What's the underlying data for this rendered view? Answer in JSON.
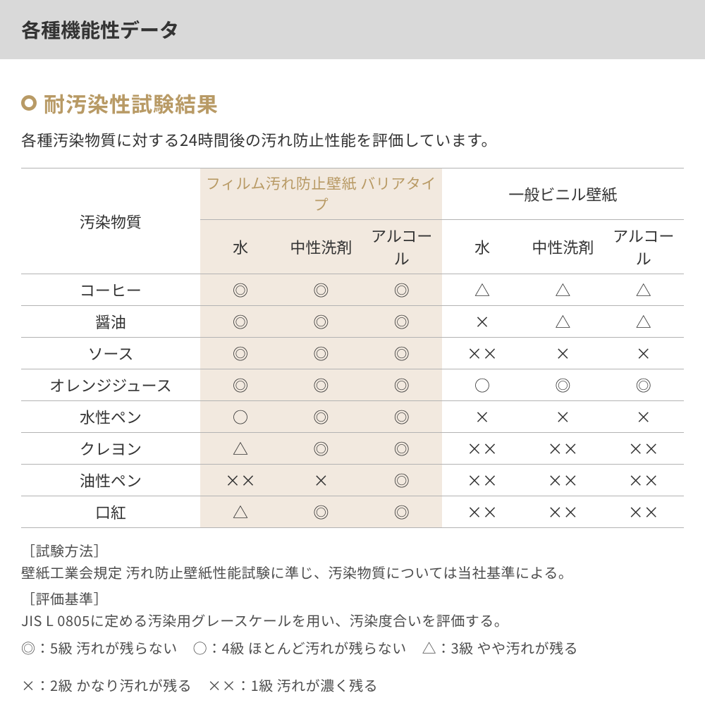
{
  "header": {
    "title": "各種機能性データ"
  },
  "section": {
    "title": "耐汚染性試験結果",
    "lead": "各種汚染物質に対する24時間後の汚れ防止性能を評価しています。"
  },
  "table": {
    "corner": "汚染物質",
    "group_a": "フィルム汚れ防止壁紙 バリアタイプ",
    "group_b": "一般ビニル壁紙",
    "subcols": [
      "水",
      "中性洗剤",
      "アルコール",
      "水",
      "中性洗剤",
      "アルコール"
    ],
    "rows": [
      {
        "name": "コーヒー",
        "cells": [
          "◎",
          "◎",
          "◎",
          "△",
          "△",
          "△"
        ]
      },
      {
        "name": "醤油",
        "cells": [
          "◎",
          "◎",
          "◎",
          "×",
          "△",
          "△"
        ]
      },
      {
        "name": "ソース",
        "cells": [
          "◎",
          "◎",
          "◎",
          "××",
          "×",
          "×"
        ]
      },
      {
        "name": "オレンジジュース",
        "cells": [
          "◎",
          "◎",
          "◎",
          "○",
          "◎",
          "◎"
        ]
      },
      {
        "name": "水性ペン",
        "cells": [
          "○",
          "◎",
          "◎",
          "×",
          "×",
          "×"
        ]
      },
      {
        "name": "クレヨン",
        "cells": [
          "△",
          "◎",
          "◎",
          "××",
          "××",
          "××"
        ]
      },
      {
        "name": "油性ペン",
        "cells": [
          "××",
          "×",
          "◎",
          "××",
          "××",
          "××"
        ]
      },
      {
        "name": "口紅",
        "cells": [
          "△",
          "◎",
          "◎",
          "××",
          "××",
          "××"
        ]
      }
    ]
  },
  "notes": {
    "method_label": "［試験方法］",
    "method_text": "壁紙工業会規定 汚れ防止壁紙性能試験に準じ、汚染物質については当社基準による。",
    "criteria_label": "［評価基準］",
    "criteria_text": "JIS L 0805に定める汚染用グレースケールを用い、汚染度合いを評価する。",
    "legend": [
      "◎：5級 汚れが残らない",
      "○：4級 ほとんど汚れが残らない",
      "△：3級 やや汚れが残る",
      "×：2級 かなり汚れが残る",
      "××：1級 汚れが濃く残る"
    ]
  },
  "colors": {
    "header_bg": "#d9d9d9",
    "accent": "#b89a65",
    "film_bg": "#f2e9df",
    "border": "#b3b3b3",
    "text": "#333333"
  }
}
